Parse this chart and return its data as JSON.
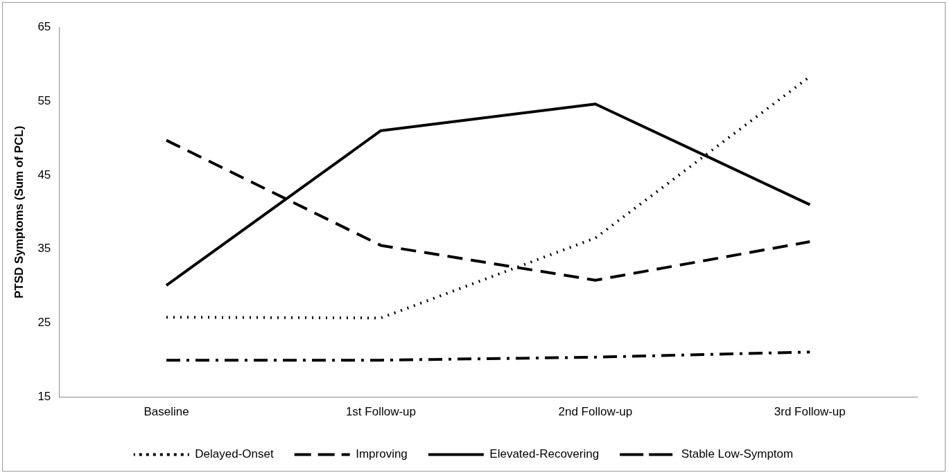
{
  "chart_data": {
    "type": "line",
    "ylabel": "PTSD Symptoms (Sum of PCL)",
    "categories": [
      "Baseline",
      "1st Follow-up",
      "2nd Follow-up",
      "3rd Follow-up"
    ],
    "series": [
      {
        "name": "Delayed-Onset",
        "color": "#000000",
        "line_style": "dotted",
        "values": [
          25.8,
          25.7,
          36.5,
          58.3
        ]
      },
      {
        "name": "Improving",
        "color": "#000000",
        "line_style": "dashed",
        "values": [
          49.7,
          35.5,
          30.8,
          36.0
        ]
      },
      {
        "name": "Elevated-Recovering",
        "color": "#000000",
        "line_style": "solid",
        "values": [
          30.1,
          51.0,
          54.6,
          41.0
        ]
      },
      {
        "name": "Stable Low-Symptom",
        "color": "#000000",
        "line_style": "dashdot",
        "values": [
          20.0,
          20.0,
          20.4,
          21.1
        ]
      }
    ],
    "ylim": [
      15,
      65
    ],
    "yticks": [
      15,
      25,
      35,
      45,
      55,
      65
    ],
    "grid": false,
    "legend": "bottom",
    "marker": "none"
  }
}
